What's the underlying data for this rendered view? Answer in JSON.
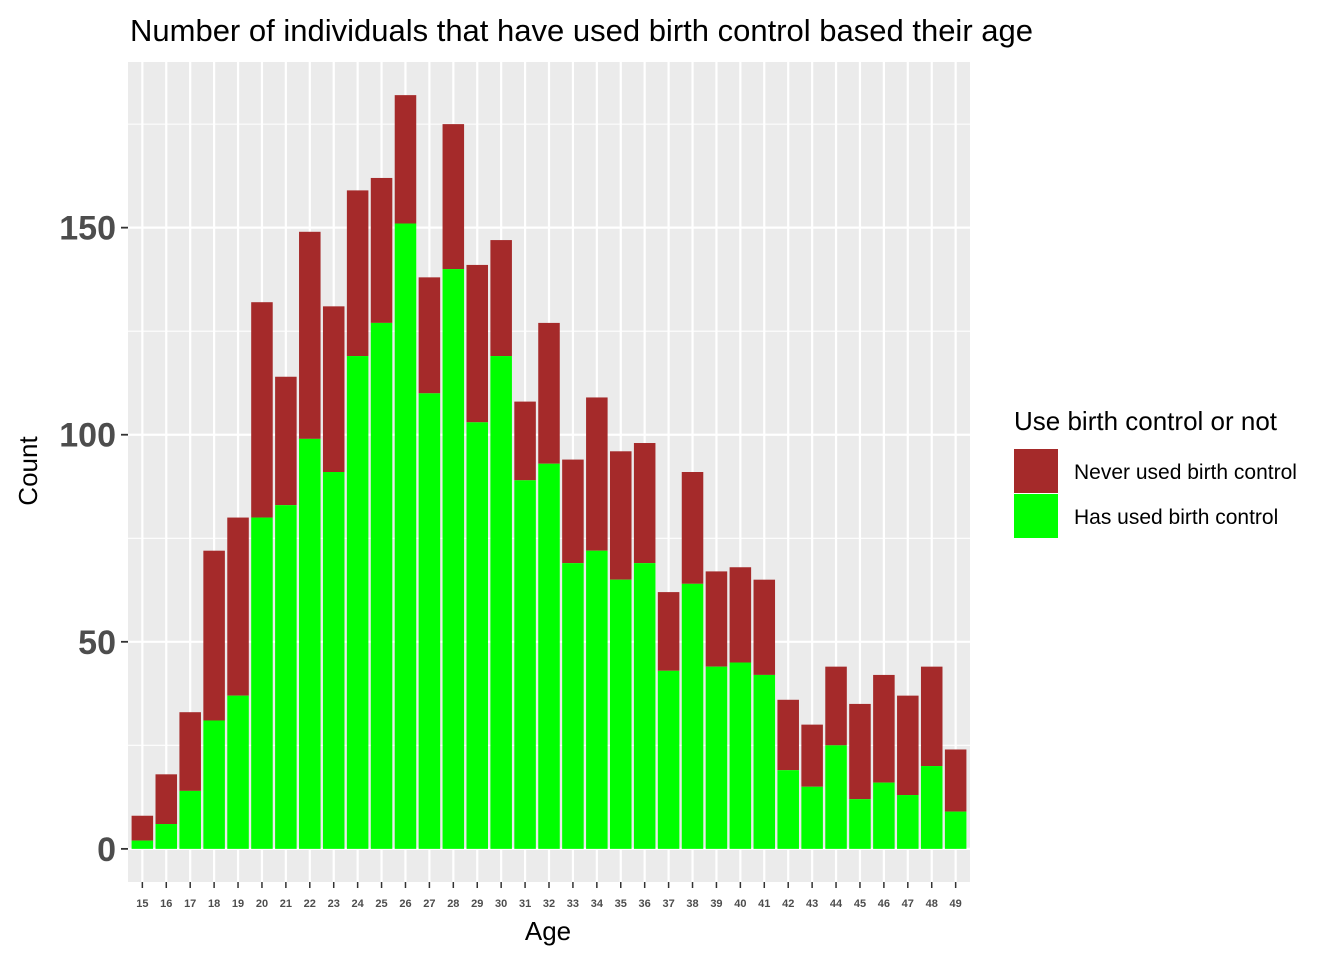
{
  "chart_data": {
    "type": "bar",
    "stacked": true,
    "title": "Number of individuals that have used birth control based their age",
    "xlabel": "Age",
    "ylabel": "Count",
    "categories": [
      "15",
      "16",
      "17",
      "18",
      "19",
      "20",
      "21",
      "22",
      "23",
      "24",
      "25",
      "26",
      "27",
      "28",
      "29",
      "30",
      "31",
      "32",
      "33",
      "34",
      "35",
      "36",
      "37",
      "38",
      "39",
      "40",
      "41",
      "42",
      "43",
      "44",
      "45",
      "46",
      "47",
      "48",
      "49"
    ],
    "series": [
      {
        "name": "Has used birth control",
        "color": "#00ff00",
        "values": [
          2,
          6,
          14,
          31,
          37,
          80,
          83,
          99,
          91,
          119,
          127,
          151,
          110,
          140,
          103,
          119,
          89,
          93,
          69,
          72,
          65,
          69,
          43,
          64,
          44,
          45,
          42,
          19,
          15,
          25,
          12,
          16,
          13,
          20,
          9
        ]
      },
      {
        "name": "Never used birth control",
        "color": "#a52a2a",
        "values": [
          6,
          12,
          19,
          41,
          43,
          52,
          31,
          50,
          40,
          40,
          35,
          31,
          28,
          35,
          38,
          28,
          19,
          34,
          25,
          37,
          31,
          29,
          19,
          27,
          23,
          23,
          23,
          17,
          15,
          19,
          23,
          26,
          24,
          24,
          15
        ]
      }
    ],
    "ylim": [
      -8,
      190
    ],
    "yticks": [
      "0",
      "50",
      "100",
      "150"
    ],
    "grid": true,
    "legend": {
      "title": "Use birth control or not",
      "position": "right",
      "entries": [
        {
          "label": "Never used birth control",
          "color": "#a52a2a"
        },
        {
          "label": "Has used birth control",
          "color": "#00ff00"
        }
      ]
    },
    "panel_color": "#ebebeb",
    "grid_color": "#ffffff"
  }
}
